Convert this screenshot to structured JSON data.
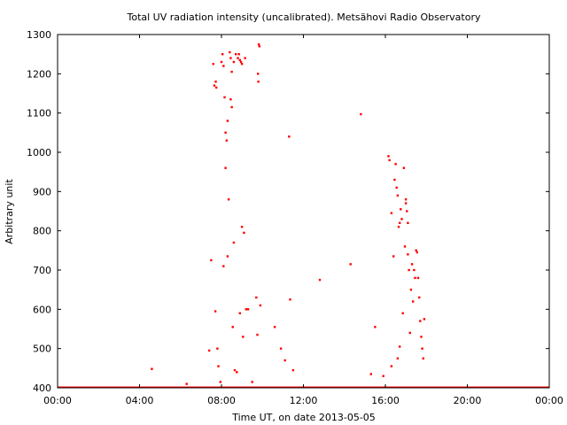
{
  "chart_data": {
    "type": "scatter",
    "title": "Total UV radiation intensity (uncalibrated). Metsähovi Radio Observatory",
    "xlabel": "Time UT, on date 2013-05-05",
    "ylabel": "Arbitrary unit",
    "xlim": [
      0,
      24
    ],
    "ylim": [
      400,
      1300
    ],
    "x_tick_values": [
      0,
      4,
      8,
      12,
      16,
      20,
      24
    ],
    "x_tick_labels": [
      "00:00",
      "04:00",
      "08:00",
      "12:00",
      "16:00",
      "20:00",
      "00:00"
    ],
    "y_tick_values": [
      400,
      500,
      600,
      700,
      800,
      900,
      1000,
      1100,
      1200,
      1300
    ],
    "y_tick_labels": [
      "400",
      "500",
      "600",
      "700",
      "800",
      "900",
      "1000",
      "1100",
      "1200",
      "1300"
    ],
    "grid": false,
    "marker_color": "#ff0000",
    "baseline_value": 400,
    "series": [
      {
        "x": [
          4.6,
          6.3,
          7.4,
          7.5,
          7.6,
          7.65,
          7.7,
          7.72,
          7.75,
          7.8,
          7.85,
          7.95,
          8.0,
          8.05,
          8.1,
          8.1,
          8.15,
          8.2,
          8.2,
          8.25,
          8.3,
          8.3,
          8.35,
          8.4,
          8.45,
          8.45,
          8.5,
          8.5,
          8.55,
          8.6,
          8.6,
          8.65,
          8.7,
          8.75,
          8.8,
          8.85,
          8.9,
          8.9,
          8.95,
          9.0,
          9.0,
          9.05,
          9.1,
          9.15,
          9.2,
          9.3,
          9.5,
          9.7,
          9.75,
          9.78,
          9.8,
          9.82,
          9.85,
          9.9,
          10.6,
          10.9,
          11.1,
          11.3,
          11.35,
          11.5,
          12.8,
          14.3,
          14.8,
          15.3,
          15.5,
          15.9,
          16.15,
          16.2,
          16.3,
          16.3,
          16.4,
          16.45,
          16.5,
          16.55,
          16.6,
          16.6,
          16.65,
          16.7,
          16.7,
          16.75,
          16.8,
          16.85,
          16.9,
          16.95,
          17.0,
          17.0,
          17.05,
          17.1,
          17.1,
          17.15,
          17.2,
          17.25,
          17.3,
          17.35,
          17.4,
          17.45,
          17.5,
          17.55,
          17.6,
          17.65,
          17.7,
          17.75,
          17.8,
          17.85,
          17.9
        ],
        "y": [
          448,
          410,
          495,
          725,
          1225,
          1170,
          595,
          1180,
          1165,
          500,
          455,
          415,
          1230,
          1250,
          1220,
          710,
          1140,
          1050,
          960,
          1030,
          735,
          1080,
          880,
          1255,
          1240,
          1135,
          1205,
          1115,
          555,
          770,
          1230,
          445,
          1250,
          440,
          1240,
          1250,
          1235,
          590,
          1230,
          1225,
          810,
          530,
          795,
          1240,
          600,
          600,
          415,
          630,
          535,
          1200,
          1180,
          1275,
          1270,
          610,
          555,
          500,
          470,
          1040,
          625,
          445,
          675,
          715,
          1097,
          435,
          555,
          430,
          990,
          980,
          845,
          455,
          735,
          930,
          970,
          910,
          890,
          475,
          810,
          820,
          505,
          855,
          830,
          590,
          960,
          760,
          880,
          870,
          850,
          740,
          820,
          700,
          540,
          650,
          715,
          620,
          700,
          680,
          750,
          745,
          680,
          630,
          570,
          530,
          500,
          475,
          575
        ]
      }
    ]
  }
}
